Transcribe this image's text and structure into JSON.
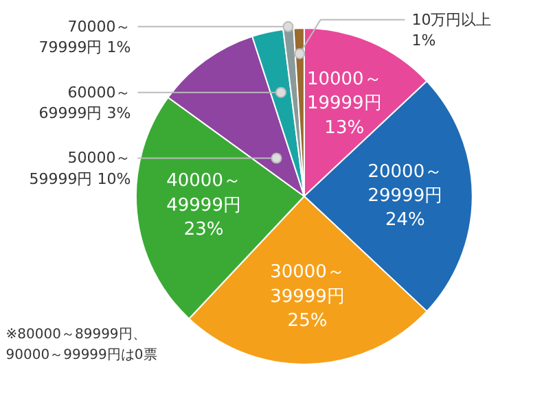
{
  "chart_data": {
    "type": "pie",
    "categories": [
      "10000～19999円",
      "20000～29999円",
      "30000～39999円",
      "40000～49999円",
      "50000～59999円",
      "60000～69999円",
      "70000～79999円",
      "10万円以上"
    ],
    "values": [
      13,
      24,
      25,
      23,
      10,
      3,
      1,
      1
    ],
    "colors": [
      "#e8489a",
      "#1f6bb5",
      "#f5a01a",
      "#3aaa35",
      "#8e44a0",
      "#1aa5a5",
      "#8a9a9a",
      "#9b6a2e"
    ],
    "value_labels": [
      "13%",
      "24%",
      "25%",
      "23%",
      "10%",
      "3%",
      "1%",
      "1%"
    ],
    "annotations": [
      "※80000～89999円、90000～99999円は0票"
    ]
  }
}
